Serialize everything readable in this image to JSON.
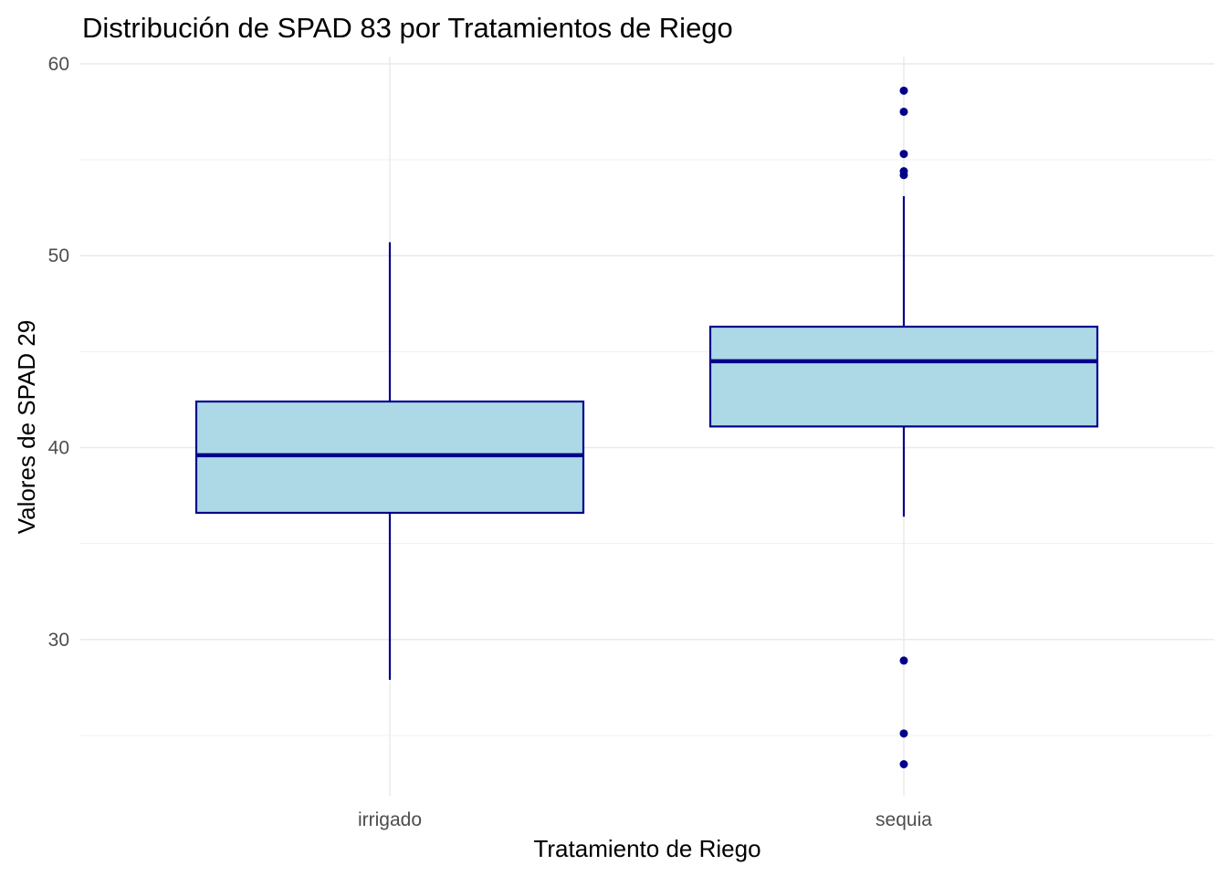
{
  "chart_data": {
    "type": "box",
    "title": "Distribución de SPAD 83 por Tratamientos de Riego",
    "xlabel": "Tratamiento de Riego",
    "ylabel": "Valores de SPAD 29",
    "ylim": [
      22,
      60.4
    ],
    "y_ticks": [
      30,
      40,
      50,
      60
    ],
    "y_minor_ticks": [
      25,
      35,
      45,
      55
    ],
    "grid": true,
    "legend": "none",
    "categories": [
      "irrigado",
      "sequia"
    ],
    "boxes": [
      {
        "category": "irrigado",
        "min": 27.9,
        "q1": 36.6,
        "median": 39.6,
        "q3": 42.4,
        "max": 50.7,
        "outliers": []
      },
      {
        "category": "sequia",
        "min": 36.4,
        "q1": 41.1,
        "median": 44.5,
        "q3": 46.3,
        "max": 53.1,
        "outliers": [
          58.6,
          57.5,
          55.3,
          54.4,
          54.2,
          28.9,
          25.1,
          23.5
        ]
      }
    ],
    "colors": {
      "box_fill": "#add8e6",
      "box_line": "#00008b",
      "outlier": "#00008b",
      "background": "#ffffff"
    }
  }
}
